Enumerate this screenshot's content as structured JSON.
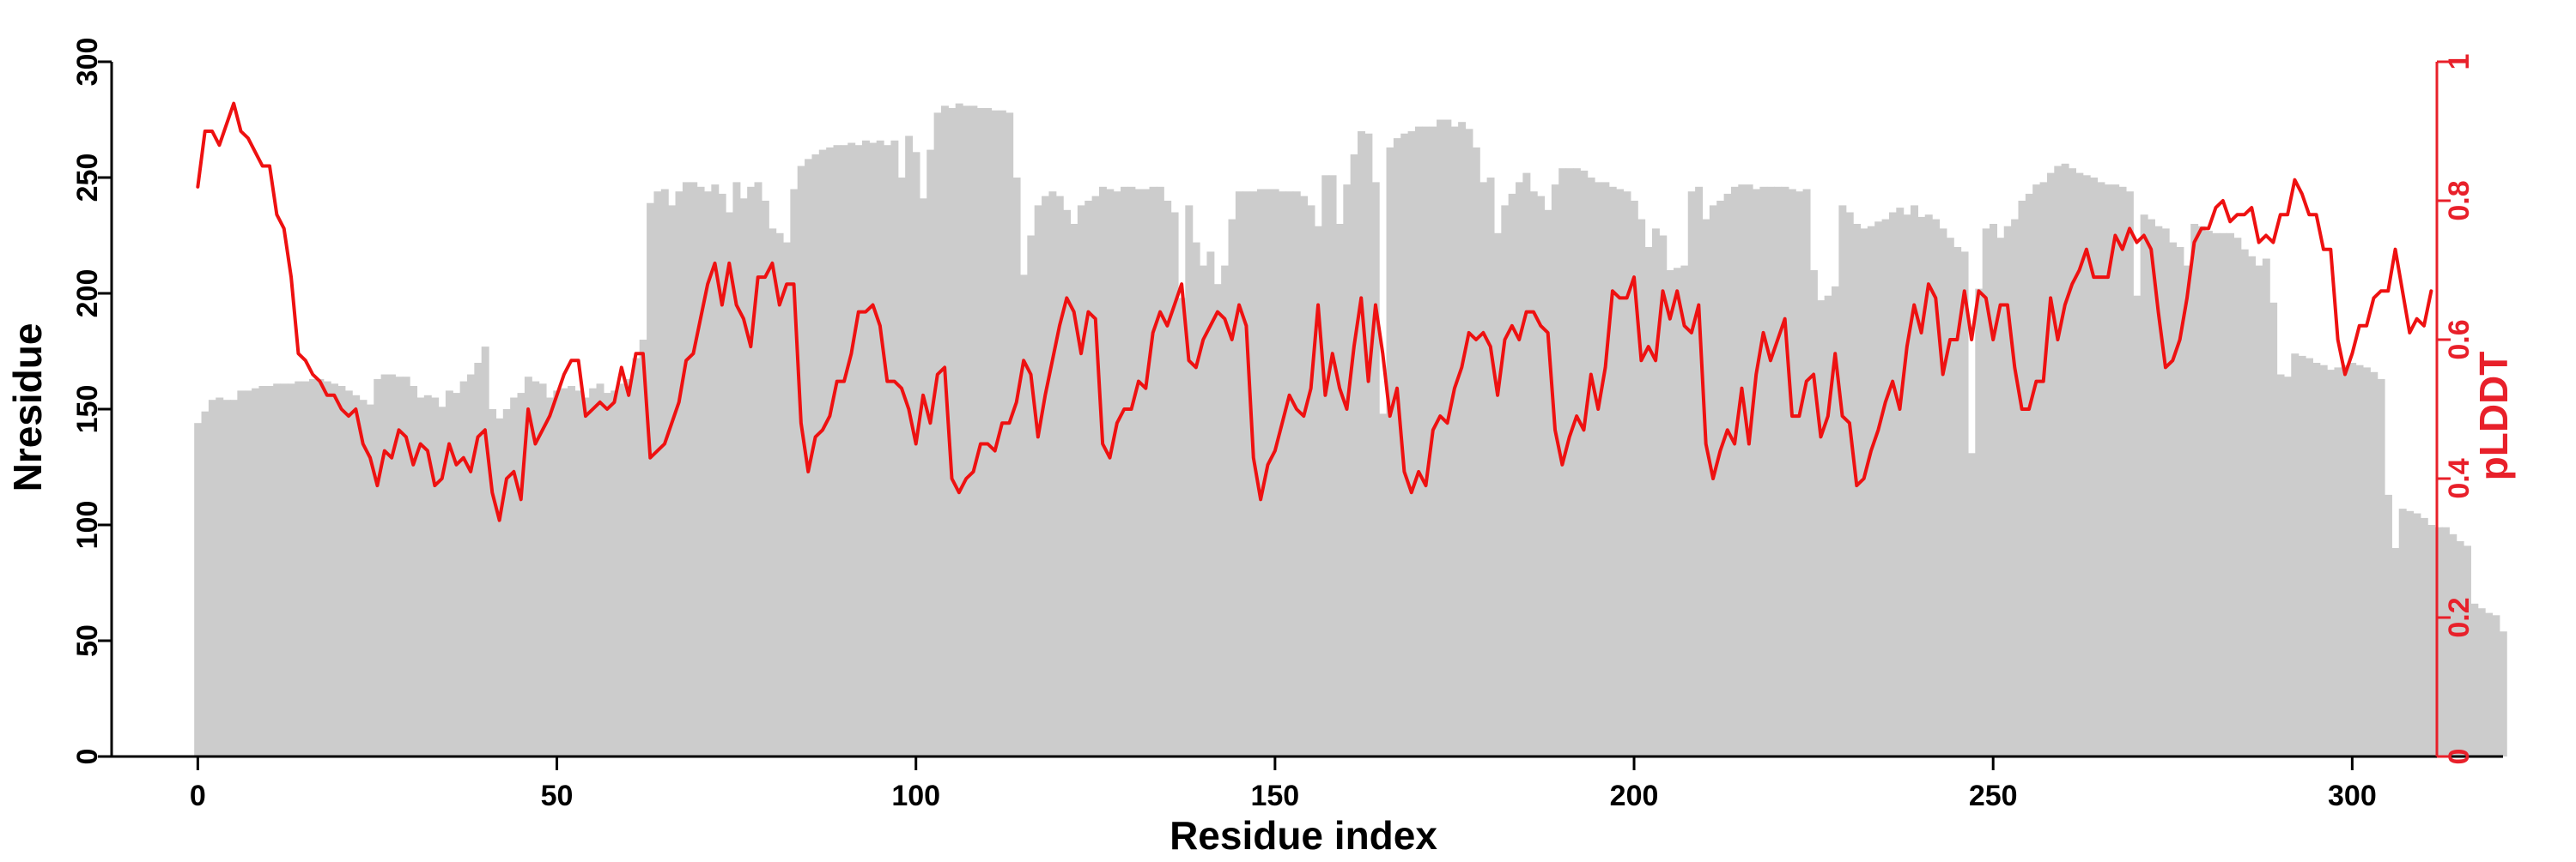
{
  "colors": {
    "bars": "#cccccc",
    "line": "#ee1111",
    "left_axis": "#000000",
    "right_axis": "#e8202a"
  },
  "chart_data": {
    "type": "bar",
    "title": "",
    "xlabel": "Residue index",
    "ylabel": "Nresidue",
    "y2label": "pLDDT",
    "xlim": [
      -12,
      321
    ],
    "ylim": [
      0,
      300
    ],
    "y2lim": [
      0,
      1
    ],
    "xticks": [
      0,
      50,
      100,
      150,
      200,
      250,
      300
    ],
    "yticks": [
      0,
      50,
      100,
      150,
      200,
      250,
      300
    ],
    "y2ticks": [
      0,
      0.2,
      0.4,
      0.6,
      0.8,
      1
    ],
    "xtick_labels": [
      "0",
      "50",
      "100",
      "150",
      "200",
      "250",
      "300"
    ],
    "ytick_labels": [
      "0",
      "50",
      "100",
      "150",
      "200",
      "250",
      "300"
    ],
    "y2tick_labels": [
      "0",
      "0.2",
      "0.4",
      "0.6",
      "0.8",
      "1"
    ],
    "grid": false,
    "legend": "none",
    "series": [
      {
        "type": "bar",
        "axis": "left",
        "x_start": 0,
        "values": [
          144,
          149,
          154,
          155,
          154,
          154,
          158,
          158,
          159,
          160,
          160,
          161,
          161,
          161,
          162,
          162,
          163,
          163,
          162,
          161,
          160,
          158,
          156,
          154,
          152,
          163,
          165,
          165,
          164,
          164,
          160,
          155,
          156,
          155,
          151,
          158,
          157,
          162,
          165,
          170,
          177,
          150,
          146,
          150,
          155,
          157,
          164,
          162,
          161,
          155,
          158,
          159,
          160,
          158,
          155,
          159,
          161,
          157,
          158,
          161,
          163,
          172,
          180,
          239,
          244,
          245,
          238,
          244,
          248,
          248,
          246,
          244,
          247,
          243,
          235,
          248,
          241,
          246,
          248,
          240,
          228,
          226,
          222,
          245,
          255,
          258,
          260,
          262,
          263,
          264,
          264,
          265,
          264,
          266,
          265,
          266,
          264,
          266,
          250,
          268,
          261,
          241,
          262,
          278,
          281,
          280,
          282,
          281,
          281,
          280,
          280,
          279,
          279,
          278,
          250,
          208,
          225,
          238,
          242,
          244,
          242,
          236,
          230,
          238,
          240,
          242,
          246,
          245,
          244,
          246,
          246,
          245,
          245,
          246,
          246,
          240,
          235,
          198,
          238,
          222,
          212,
          218,
          204,
          212,
          232,
          244,
          244,
          244,
          245,
          245,
          245,
          244,
          244,
          244,
          242,
          238,
          229,
          251,
          251,
          230,
          247,
          260,
          270,
          269,
          248,
          148,
          263,
          267,
          269,
          270,
          272,
          272,
          272,
          275,
          275,
          272,
          274,
          271,
          263,
          248,
          250,
          226,
          238,
          243,
          248,
          252,
          244,
          242,
          236,
          247,
          254,
          254,
          254,
          253,
          250,
          248,
          248,
          246,
          245,
          244,
          240,
          232,
          220,
          228,
          225,
          210,
          211,
          212,
          244,
          246,
          232,
          238,
          240,
          243,
          246,
          247,
          247,
          245,
          246,
          246,
          246,
          246,
          245,
          244,
          245,
          210,
          197,
          199,
          203,
          238,
          235,
          230,
          228,
          229,
          231,
          232,
          235,
          237,
          234,
          238,
          233,
          234,
          232,
          228,
          224,
          220,
          218,
          131,
          202,
          228,
          230,
          224,
          229,
          232,
          240,
          243,
          247,
          248,
          252,
          255,
          256,
          254,
          252,
          251,
          250,
          248,
          247,
          247,
          246,
          244,
          199,
          234,
          232,
          229,
          228,
          222,
          220,
          212,
          230,
          229,
          227,
          226,
          226,
          226,
          224,
          219,
          216,
          212,
          215,
          196,
          165,
          164,
          174,
          173,
          172,
          170,
          169,
          167,
          168,
          169,
          170,
          169,
          168,
          166,
          163,
          113,
          90,
          107,
          106,
          105,
          103,
          100,
          99,
          99,
          96,
          93,
          91,
          66,
          64,
          62,
          61,
          54
        ]
      },
      {
        "type": "line",
        "axis": "right",
        "x_start": 0,
        "values": [
          0.82,
          0.9,
          0.9,
          0.88,
          0.91,
          0.94,
          0.9,
          0.89,
          0.87,
          0.85,
          0.85,
          0.78,
          0.76,
          0.69,
          0.58,
          0.57,
          0.55,
          0.54,
          0.52,
          0.52,
          0.5,
          0.49,
          0.5,
          0.45,
          0.43,
          0.39,
          0.44,
          0.43,
          0.47,
          0.46,
          0.42,
          0.45,
          0.44,
          0.39,
          0.4,
          0.45,
          0.42,
          0.43,
          0.41,
          0.46,
          0.47,
          0.38,
          0.34,
          0.4,
          0.41,
          0.37,
          0.5,
          0.45,
          0.47,
          0.49,
          0.52,
          0.55,
          0.57,
          0.57,
          0.49,
          0.5,
          0.51,
          0.5,
          0.51,
          0.56,
          0.52,
          0.58,
          0.58,
          0.43,
          0.44,
          0.45,
          0.48,
          0.51,
          0.57,
          0.58,
          0.63,
          0.68,
          0.71,
          0.65,
          0.71,
          0.65,
          0.63,
          0.59,
          0.69,
          0.69,
          0.71,
          0.65,
          0.68,
          0.68,
          0.48,
          0.41,
          0.46,
          0.47,
          0.49,
          0.54,
          0.54,
          0.58,
          0.64,
          0.64,
          0.65,
          0.62,
          0.54,
          0.54,
          0.53,
          0.5,
          0.45,
          0.52,
          0.48,
          0.55,
          0.56,
          0.4,
          0.38,
          0.4,
          0.41,
          0.45,
          0.45,
          0.44,
          0.48,
          0.48,
          0.51,
          0.57,
          0.55,
          0.46,
          0.52,
          0.57,
          0.62,
          0.66,
          0.64,
          0.58,
          0.64,
          0.63,
          0.45,
          0.43,
          0.48,
          0.5,
          0.5,
          0.54,
          0.53,
          0.61,
          0.64,
          0.62,
          0.65,
          0.68,
          0.57,
          0.56,
          0.6,
          0.62,
          0.64,
          0.63,
          0.6,
          0.65,
          0.62,
          0.43,
          0.37,
          0.42,
          0.44,
          0.48,
          0.52,
          0.5,
          0.49,
          0.53,
          0.65,
          0.52,
          0.58,
          0.53,
          0.5,
          0.59,
          0.66,
          0.54,
          0.65,
          0.58,
          0.49,
          0.53,
          0.41,
          0.38,
          0.41,
          0.39,
          0.47,
          0.49,
          0.48,
          0.53,
          0.56,
          0.61,
          0.6,
          0.61,
          0.59,
          0.52,
          0.6,
          0.62,
          0.6,
          0.64,
          0.64,
          0.62,
          0.61,
          0.47,
          0.42,
          0.46,
          0.49,
          0.47,
          0.55,
          0.5,
          0.56,
          0.67,
          0.66,
          0.66,
          0.69,
          0.57,
          0.59,
          0.57,
          0.67,
          0.63,
          0.67,
          0.62,
          0.61,
          0.65,
          0.45,
          0.4,
          0.44,
          0.47,
          0.45,
          0.53,
          0.45,
          0.55,
          0.61,
          0.57,
          0.6,
          0.63,
          0.49,
          0.49,
          0.54,
          0.55,
          0.46,
          0.49,
          0.58,
          0.49,
          0.48,
          0.39,
          0.4,
          0.44,
          0.47,
          0.51,
          0.54,
          0.5,
          0.59,
          0.65,
          0.61,
          0.68,
          0.66,
          0.55,
          0.6,
          0.6,
          0.67,
          0.6,
          0.67,
          0.66,
          0.6,
          0.65,
          0.65,
          0.56,
          0.5,
          0.5,
          0.54,
          0.54,
          0.66,
          0.6,
          0.65,
          0.68,
          0.7,
          0.73,
          0.69,
          0.69,
          0.69,
          0.75,
          0.73,
          0.76,
          0.74,
          0.75,
          0.73,
          0.64,
          0.56,
          0.57,
          0.6,
          0.66,
          0.74,
          0.76,
          0.76,
          0.79,
          0.8,
          0.77,
          0.78,
          0.78,
          0.79,
          0.74,
          0.75,
          0.74,
          0.78,
          0.78,
          0.83,
          0.81,
          0.78,
          0.78,
          0.73,
          0.73,
          0.6,
          0.55,
          0.58,
          0.62,
          0.62,
          0.66,
          0.67,
          0.67,
          0.73,
          0.67,
          0.61,
          0.63,
          0.62,
          0.67
        ]
      }
    ]
  }
}
